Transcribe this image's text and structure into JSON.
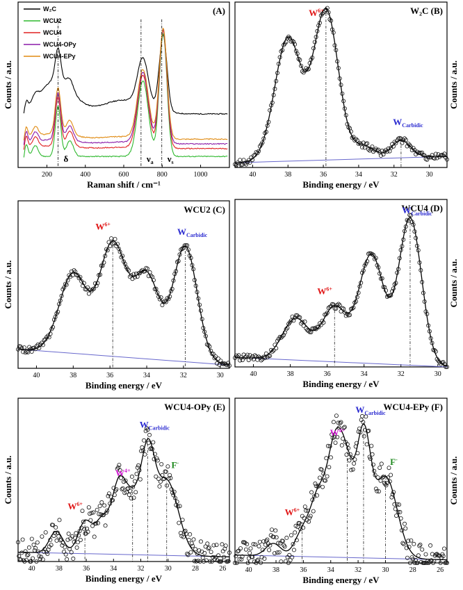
{
  "chart_data": [
    {
      "panel": "A",
      "type": "line",
      "title": "(A)",
      "xlabel": "Raman shift / cm⁻¹",
      "ylabel": "Counts / a.u.",
      "xlim": [
        50,
        1150
      ],
      "ylim": [
        0,
        1.05
      ],
      "xticks": [
        200,
        400,
        600,
        800,
        1000
      ],
      "legend": {
        "position": "top-left"
      },
      "series": [
        {
          "name": "W₂C",
          "color": "#000000",
          "baseline": 0.34,
          "scale": 0.62,
          "shoulder": 0.22
        },
        {
          "name": "WCU2",
          "color": "#2db82d",
          "baseline": 0.07,
          "scale": 1.0,
          "shoulder": 0.0
        },
        {
          "name": "WCU4",
          "color": "#e02020",
          "baseline": 0.12,
          "scale": 0.96,
          "shoulder": 0.02
        },
        {
          "name": "WCU4-OPy",
          "color": "#8a1aa8",
          "baseline": 0.15,
          "scale": 0.93,
          "shoulder": 0.03
        },
        {
          "name": "WCU4-EPy",
          "color": "#e08a10",
          "baseline": 0.18,
          "scale": 0.9,
          "shoulder": 0.04
        }
      ],
      "peaks": [
        {
          "center": 90,
          "height": 0.09,
          "width": 10
        },
        {
          "center": 140,
          "height": 0.07,
          "width": 15
        },
        {
          "center": 258,
          "height": 0.32,
          "width": 14
        },
        {
          "center": 320,
          "height": 0.1,
          "width": 18
        },
        {
          "center": 700,
          "height": 0.48,
          "width": 28
        },
        {
          "center": 805,
          "height": 0.78,
          "width": 20
        }
      ],
      "annotations": [
        {
          "label": "δ",
          "x": 258
        },
        {
          "label": "νa",
          "x": 690
        },
        {
          "label": "νs",
          "x": 798
        }
      ]
    },
    {
      "panel": "B",
      "type": "line",
      "title": "W₂C  (B)",
      "xlabel": "Binding energy / eV",
      "ylabel": "Counts / a.u.",
      "xlim": [
        41,
        29
      ],
      "ylim": [
        0,
        1.05
      ],
      "xticks": [
        40,
        38,
        36,
        34,
        32,
        30
      ],
      "background": [
        0.03,
        0.07
      ],
      "components": [
        {
          "label": "W6+",
          "center": 38.0,
          "height": 0.78,
          "width": 0.75,
          "color": "#e24a4a"
        },
        {
          "label": "W6+",
          "center": 35.85,
          "height": 0.95,
          "width": 0.7,
          "color": "#e24a4a"
        },
        {
          "label": "WCarbidic",
          "center": 33.7,
          "height": 0.08,
          "width": 0.6,
          "color": "#4444dd"
        },
        {
          "label": "WCarbidic",
          "center": 31.6,
          "height": 0.11,
          "width": 0.55,
          "color": "#4444dd"
        }
      ],
      "peak_labels": [
        {
          "text": "W6+",
          "at": 35.85,
          "color": "#e01515"
        },
        {
          "text": "WCarbidic",
          "at": 31.6,
          "color": "#2a2ad0"
        }
      ]
    },
    {
      "panel": "C",
      "type": "line",
      "title": "WCU2  (C)",
      "xlabel": "Binding energy / eV",
      "ylabel": "Counts / a.u.",
      "xlim": [
        41,
        29.5
      ],
      "ylim": [
        0,
        1.05
      ],
      "xticks": [
        40,
        38,
        36,
        34,
        32,
        30
      ],
      "background": [
        0.12,
        0.02
      ],
      "components": [
        {
          "label": "W6+",
          "center": 38.0,
          "height": 0.5,
          "width": 0.75,
          "color": "#e24a4a"
        },
        {
          "label": "W6+",
          "center": 35.85,
          "height": 0.7,
          "width": 0.72,
          "color": "#e24a4a"
        },
        {
          "label": "WCarbidic",
          "center": 34.0,
          "height": 0.52,
          "width": 0.7,
          "color": "#4444dd"
        },
        {
          "label": "WCarbidic",
          "center": 31.9,
          "height": 0.72,
          "width": 0.65,
          "color": "#4444dd"
        }
      ],
      "peak_labels": [
        {
          "text": "W6+",
          "at": 35.85,
          "color": "#e01515"
        },
        {
          "text": "WCarbidic",
          "at": 31.9,
          "color": "#2a2ad0"
        }
      ]
    },
    {
      "panel": "D",
      "type": "line",
      "title": "WCU4  (D)",
      "xlabel": "Binding energy / eV",
      "ylabel": "Counts / a.u.",
      "xlim": [
        41,
        29.5
      ],
      "ylim": [
        0,
        1.05
      ],
      "xticks": [
        40,
        38,
        36,
        34,
        32,
        30
      ],
      "background": [
        0.06,
        0.0
      ],
      "components": [
        {
          "label": "W6+",
          "center": 37.7,
          "height": 0.26,
          "width": 0.72,
          "color": "#e24a4a"
        },
        {
          "label": "W6+",
          "center": 35.6,
          "height": 0.34,
          "width": 0.68,
          "color": "#e24a4a"
        },
        {
          "label": "WCarbidic",
          "center": 33.6,
          "height": 0.68,
          "width": 0.68,
          "color": "#4444dd"
        },
        {
          "label": "WCarbidic",
          "center": 31.5,
          "height": 0.92,
          "width": 0.62,
          "color": "#4444dd"
        }
      ],
      "peak_labels": [
        {
          "text": "W6+",
          "at": 35.6,
          "color": "#e01515"
        },
        {
          "text": "WCarbidic",
          "at": 31.5,
          "color": "#2a2ad0"
        }
      ]
    },
    {
      "panel": "E",
      "type": "line",
      "title": "WCU4-OPy  (E)",
      "xlabel": "Binding energy / eV",
      "ylabel": "Counts / a.u.",
      "xlim": [
        41,
        25.5
      ],
      "ylim": [
        0,
        1.05
      ],
      "xticks": [
        40,
        38,
        36,
        34,
        32,
        30,
        28,
        26
      ],
      "background": [
        0.06,
        0.03
      ],
      "components": [
        {
          "label": "W6+",
          "center": 38.2,
          "height": 0.14,
          "width": 0.5,
          "color": "#e24a4a"
        },
        {
          "label": "W6+",
          "center": 36.1,
          "height": 0.2,
          "width": 0.5,
          "color": "#e24a4a"
        },
        {
          "label": "W4+",
          "center": 34.8,
          "height": 0.22,
          "width": 0.55,
          "color": "#d04ad8"
        },
        {
          "label": "W4+",
          "center": 32.6,
          "height": 0.32,
          "width": 0.55,
          "color": "#d04ad8"
        },
        {
          "label": "WCarbidic",
          "center": 33.6,
          "height": 0.42,
          "width": 0.5,
          "color": "#4444dd"
        },
        {
          "label": "WCarbidic",
          "center": 31.5,
          "height": 0.58,
          "width": 0.5,
          "color": "#4444dd"
        },
        {
          "label": "F-",
          "center": 30.1,
          "height": 0.48,
          "width": 0.85,
          "color": "#3f8c3f"
        }
      ],
      "peak_labels": [
        {
          "text": "W6+",
          "at": 36.1,
          "color": "#e01515"
        },
        {
          "text": "W4+",
          "at": 32.6,
          "color": "#d018d0"
        },
        {
          "text": "WCarbidic",
          "at": 31.5,
          "color": "#2a2ad0"
        },
        {
          "text": "F-",
          "at": 30.1,
          "color": "#1f8a1f"
        }
      ]
    },
    {
      "panel": "F",
      "type": "line",
      "title": "WCU4-EPy  (F)",
      "xlabel": "Binding energy / eV",
      "ylabel": "Counts / a.u.",
      "xlim": [
        41,
        25.5
      ],
      "ylim": [
        0,
        1.05
      ],
      "xticks": [
        40,
        38,
        36,
        34,
        32,
        30,
        28,
        26
      ],
      "background": [
        0.05,
        0.02
      ],
      "components": [
        {
          "label": "W6+",
          "center": 38.2,
          "height": 0.08,
          "width": 0.55,
          "color": "#e24a4a"
        },
        {
          "label": "W6+",
          "center": 36.1,
          "height": 0.14,
          "width": 0.55,
          "color": "#e24a4a"
        },
        {
          "label": "W4+",
          "center": 34.9,
          "height": 0.38,
          "width": 0.6,
          "color": "#d04ad8"
        },
        {
          "label": "W4+",
          "center": 32.8,
          "height": 0.5,
          "width": 0.55,
          "color": "#d04ad8"
        },
        {
          "label": "WCarbidic",
          "center": 33.7,
          "height": 0.62,
          "width": 0.55,
          "color": "#4444dd"
        },
        {
          "label": "WCarbidic",
          "center": 31.6,
          "height": 0.72,
          "width": 0.5,
          "color": "#4444dd"
        },
        {
          "label": "F-",
          "center": 30.0,
          "height": 0.52,
          "width": 0.85,
          "color": "#3f8c3f"
        }
      ],
      "peak_labels": [
        {
          "text": "W6+",
          "at": 36.1,
          "color": "#e01515"
        },
        {
          "text": "W4+",
          "at": 32.8,
          "color": "#d018d0"
        },
        {
          "text": "WCarbidic",
          "at": 31.6,
          "color": "#2a2ad0"
        },
        {
          "text": "F-",
          "at": 30.0,
          "color": "#1f8a1f"
        }
      ]
    }
  ]
}
